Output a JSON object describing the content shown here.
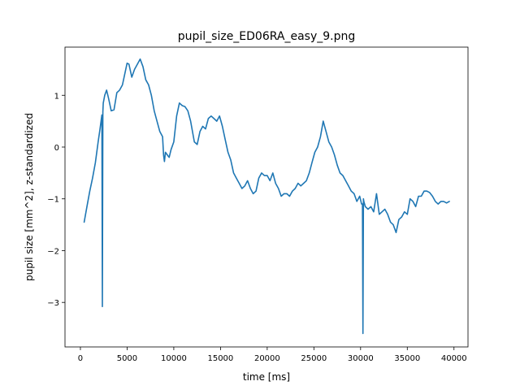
{
  "chart_data": {
    "type": "line",
    "title": "pupil_size_ED06RA_easy_9.png",
    "xlabel": "time [ms]",
    "ylabel": "pupil size [mm^2], z-standardized",
    "xlim": [
      -1650,
      41500
    ],
    "ylim": [
      -3.86,
      1.93
    ],
    "xticks": [
      0,
      5000,
      10000,
      15000,
      20000,
      25000,
      30000,
      35000,
      40000
    ],
    "yticks": [
      -3,
      -2,
      -1,
      0,
      1
    ],
    "grid": false,
    "color": "#1f77b4",
    "series": [
      {
        "name": "",
        "x": [
          400,
          700,
          1000,
          1300,
          1600,
          1900,
          2100,
          2250,
          2300,
          2350,
          2400,
          2450,
          2600,
          2800,
          3000,
          3300,
          3600,
          3900,
          4200,
          4500,
          4800,
          5000,
          5200,
          5500,
          5800,
          6100,
          6400,
          6700,
          7000,
          7300,
          7600,
          7900,
          8200,
          8500,
          8800,
          8900,
          9000,
          9100,
          9300,
          9500,
          9700,
          10000,
          10300,
          10600,
          10900,
          11200,
          11500,
          11800,
          12000,
          12200,
          12500,
          12800,
          13100,
          13400,
          13700,
          14000,
          14300,
          14600,
          14900,
          15200,
          15500,
          15800,
          16100,
          16400,
          16700,
          17000,
          17300,
          17600,
          17900,
          18200,
          18500,
          18800,
          19100,
          19400,
          19700,
          20000,
          20300,
          20600,
          20900,
          21200,
          21500,
          21800,
          22100,
          22400,
          22700,
          23000,
          23300,
          23600,
          23900,
          24200,
          24500,
          24800,
          25100,
          25400,
          25700,
          26000,
          26300,
          26600,
          26900,
          27200,
          27500,
          27800,
          28100,
          28400,
          28700,
          29000,
          29300,
          29600,
          29900,
          30100,
          30200,
          30250,
          30300,
          30350,
          30500,
          30800,
          31100,
          31400,
          31700,
          32000,
          32300,
          32600,
          32900,
          33200,
          33500,
          33800,
          34100,
          34400,
          34700,
          35000,
          35300,
          35600,
          35900,
          36200,
          36500,
          36800,
          37100,
          37400,
          37700,
          38000,
          38300,
          38600,
          38900,
          39200,
          39500
        ],
        "y": [
          -1.45,
          -1.15,
          -0.85,
          -0.6,
          -0.3,
          0.1,
          0.35,
          0.55,
          0.62,
          -3.08,
          0.68,
          0.85,
          1.0,
          1.1,
          0.95,
          0.7,
          0.72,
          1.05,
          1.1,
          1.2,
          1.45,
          1.62,
          1.6,
          1.35,
          1.5,
          1.6,
          1.7,
          1.55,
          1.3,
          1.2,
          1.0,
          0.7,
          0.5,
          0.3,
          0.2,
          -0.15,
          -0.28,
          -0.1,
          -0.15,
          -0.2,
          -0.05,
          0.1,
          0.6,
          0.85,
          0.8,
          0.78,
          0.7,
          0.5,
          0.3,
          0.1,
          0.05,
          0.3,
          0.4,
          0.35,
          0.55,
          0.6,
          0.55,
          0.5,
          0.6,
          0.4,
          0.15,
          -0.1,
          -0.25,
          -0.5,
          -0.6,
          -0.7,
          -0.8,
          -0.75,
          -0.65,
          -0.8,
          -0.9,
          -0.85,
          -0.6,
          -0.5,
          -0.55,
          -0.55,
          -0.65,
          -0.5,
          -0.7,
          -0.8,
          -0.95,
          -0.9,
          -0.9,
          -0.95,
          -0.85,
          -0.8,
          -0.7,
          -0.75,
          -0.7,
          -0.65,
          -0.5,
          -0.3,
          -0.1,
          0.0,
          0.2,
          0.5,
          0.3,
          0.1,
          0.0,
          -0.15,
          -0.35,
          -0.5,
          -0.55,
          -0.65,
          -0.75,
          -0.85,
          -0.9,
          -1.05,
          -0.95,
          -1.1,
          -1.1,
          -3.6,
          -1.0,
          -1.05,
          -1.15,
          -1.2,
          -1.15,
          -1.25,
          -0.9,
          -1.3,
          -1.25,
          -1.2,
          -1.3,
          -1.45,
          -1.5,
          -1.65,
          -1.4,
          -1.35,
          -1.25,
          -1.3,
          -1.0,
          -1.05,
          -1.15,
          -0.95,
          -0.95,
          -0.85,
          -0.85,
          -0.88,
          -0.95,
          -1.05,
          -1.1,
          -1.05,
          -1.05,
          -1.08,
          -1.05
        ]
      }
    ]
  }
}
